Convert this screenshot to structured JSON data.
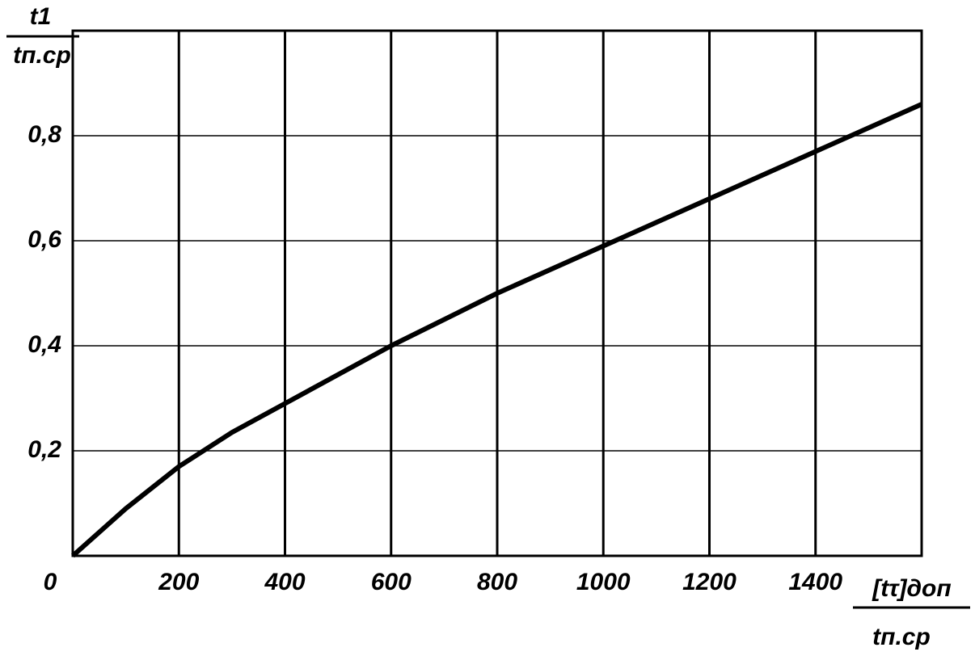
{
  "chart_data": {
    "type": "line",
    "y_label": {
      "numerator": "t1",
      "denominator": "tп.ср"
    },
    "x_label": {
      "numerator": "[tτ]доп",
      "denominator": "tп.ср"
    },
    "x": [
      0,
      100,
      200,
      300,
      400,
      600,
      800,
      1000,
      1200,
      1400,
      1600
    ],
    "series": [
      {
        "color": "#000000",
        "values": [
          0,
          0.09,
          0.17,
          0.235,
          0.29,
          0.4,
          0.5,
          0.59,
          0.68,
          0.77,
          0.86
        ]
      }
    ],
    "xlim": [
      0,
      1600
    ],
    "ylim": [
      0,
      1.0
    ],
    "xticks": [
      0,
      200,
      400,
      600,
      800,
      1000,
      1200,
      1400
    ],
    "yticks": [
      {
        "value": 0.2,
        "label": "0,2"
      },
      {
        "value": 0.4,
        "label": "0,4"
      },
      {
        "value": 0.6,
        "label": "0,6"
      },
      {
        "value": 0.8,
        "label": "0,8"
      }
    ],
    "grid": true
  }
}
